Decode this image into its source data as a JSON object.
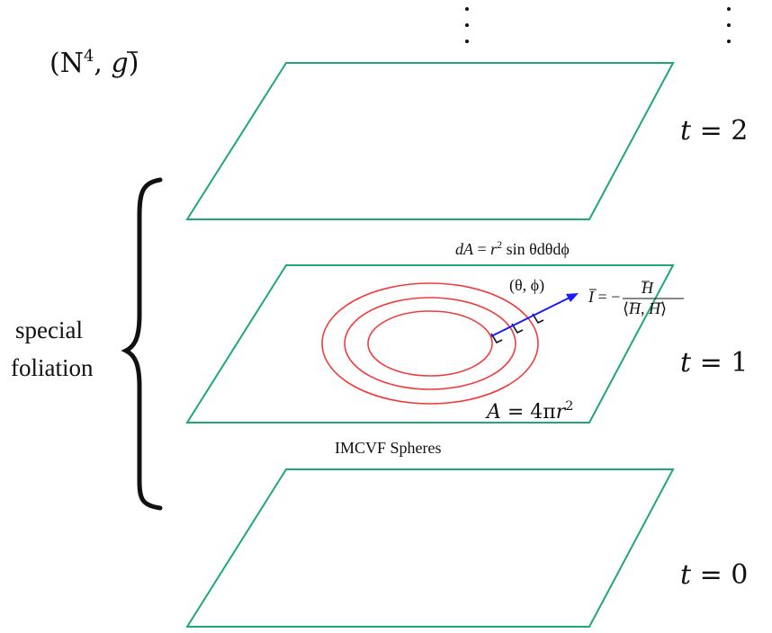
{
  "manifold_label": {
    "base": "(N",
    "sup": "4",
    "rest": ", ",
    "g": "g",
    "close": ")"
  },
  "time_labels": [
    {
      "var": "t",
      "eq": " = ",
      "val": "2"
    },
    {
      "var": "t",
      "eq": " = ",
      "val": "1"
    },
    {
      "var": "t",
      "eq": " = ",
      "val": "0"
    }
  ],
  "brace_label": {
    "line1": "special",
    "line2": "foliation"
  },
  "area_element": {
    "lhs": "dA",
    "eq": " = ",
    "r": "r",
    "sup": "2",
    "rest": " sin θdθdϕ"
  },
  "coordinates": "(θ, ϕ)",
  "normal_vector": {
    "lhs": "I",
    "eq": " = −",
    "num": "H",
    "den_open": "⟨",
    "den_h1": "H",
    "den_comma": ", ",
    "den_h2": "H",
    "den_close": "⟩"
  },
  "sphere_area": {
    "lhs": "A",
    "eq": " = 4π",
    "r": "r",
    "sup": "2"
  },
  "caption": "IMCVF Spheres",
  "colors": {
    "plane": "#1fa77a",
    "circles": "#f03c3c",
    "arrow": "#1a1aff",
    "text": "#111111"
  }
}
